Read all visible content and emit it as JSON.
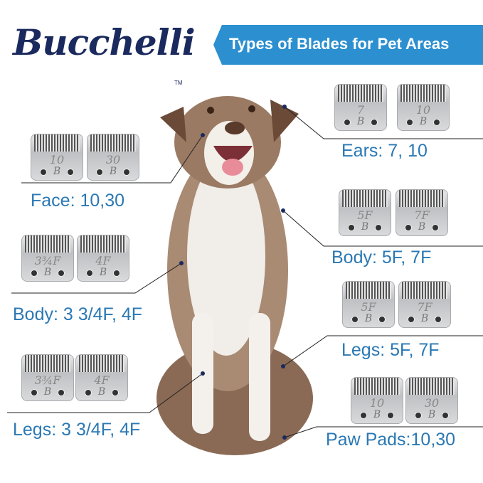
{
  "brand": {
    "logo": "Bucchelli",
    "tm": "TM"
  },
  "banner": {
    "title": "Types of Blades for Pet Areas",
    "color": "#2b8fd0"
  },
  "label_color": "#2a78b4",
  "areas": [
    {
      "label": "Ears: 7, 10",
      "blades": [
        "7",
        "10"
      ]
    },
    {
      "label": "Face: 10,30",
      "blades": [
        "10",
        "30"
      ]
    },
    {
      "label": "Body: 5F, 7F",
      "blades": [
        "5F",
        "7F"
      ]
    },
    {
      "label": "Body: 3 3/4F, 4F",
      "blades": [
        "3¾F",
        "4F"
      ]
    },
    {
      "label": "Legs: 5F, 7F",
      "blades": [
        "5F",
        "7F"
      ]
    },
    {
      "label": "Legs: 3 3/4F, 4F",
      "blades": [
        "3¾F",
        "4F"
      ]
    },
    {
      "label": "Paw Pads:10,30",
      "blades": [
        "10",
        "30"
      ]
    }
  ],
  "blade_mark": "B"
}
